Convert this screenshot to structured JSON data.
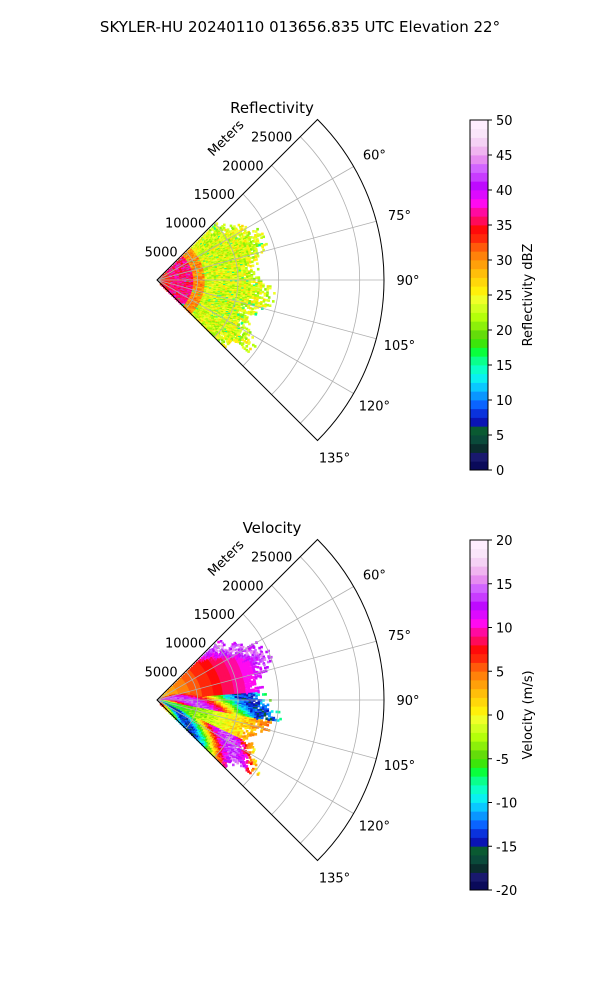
{
  "suptitle": "SKYLER-HU  20240110  013656.835 UTC Elevation 22°",
  "chart_data": [
    {
      "type": "polar-sector",
      "title": "Reflectivity",
      "range_label": "Meters",
      "range_ticks": [
        5000,
        10000,
        15000,
        20000,
        25000
      ],
      "rmax": 28000,
      "azimuth_ticks": [
        "60°",
        "75°",
        "90°",
        "105°",
        "120°",
        "135°"
      ],
      "azimuth_range_deg": [
        45,
        135
      ],
      "data_extent_m": 13000,
      "colorbar": {
        "label": "Reflectivity dBZ",
        "min": 0,
        "max": 50,
        "ticks": [
          0,
          5,
          10,
          15,
          20,
          25,
          30,
          35,
          40,
          45,
          50
        ]
      }
    },
    {
      "type": "polar-sector",
      "title": "Velocity",
      "range_label": "Meters",
      "range_ticks": [
        5000,
        10000,
        15000,
        20000,
        25000
      ],
      "rmax": 28000,
      "azimuth_ticks": [
        "60°",
        "75°",
        "90°",
        "105°",
        "120°",
        "135°"
      ],
      "azimuth_range_deg": [
        45,
        135
      ],
      "data_extent_m": 13500,
      "colorbar": {
        "label": "Velocity (m/s)",
        "min": -20,
        "max": 20,
        "ticks": [
          -20,
          -15,
          -10,
          -5,
          0,
          5,
          10,
          15,
          20
        ]
      }
    }
  ],
  "colormap": [
    "#0a0a5a",
    "#19196e",
    "#0a2d2d",
    "#0a4a3a",
    "#0a5a32",
    "#0a14b4",
    "#0a32dc",
    "#0a64ff",
    "#0a96ff",
    "#0ac8ff",
    "#0af0f0",
    "#0affc8",
    "#0aff8c",
    "#0aff3c",
    "#3ce60a",
    "#64dc0a",
    "#8cf00a",
    "#b4ff0a",
    "#d2ff1e",
    "#f0ff28",
    "#fff00a",
    "#ffd70a",
    "#ffbe0a",
    "#ffa00a",
    "#ff820a",
    "#ff5a0a",
    "#ff280a",
    "#ff0a0a",
    "#ff0a5a",
    "#ff0aa0",
    "#ff0af0",
    "#dc0aff",
    "#be0aff",
    "#c83cff",
    "#d264ff",
    "#e68cf0",
    "#f0b4f0",
    "#f5d2f5",
    "#fae6fa",
    "#ffeeff"
  ]
}
